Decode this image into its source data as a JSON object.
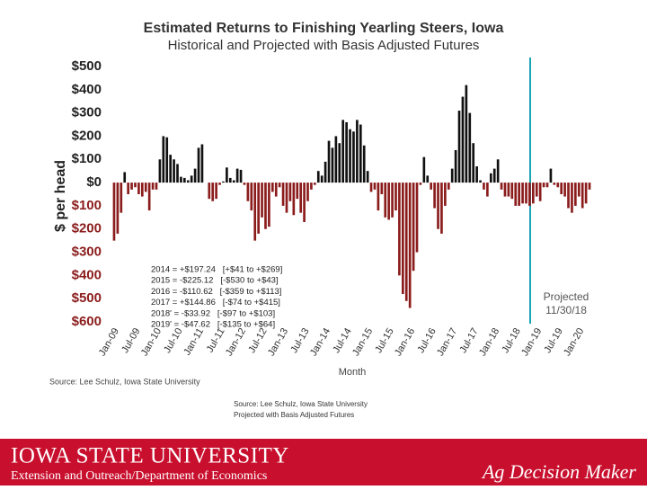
{
  "chart_data": {
    "type": "bar",
    "title": "Estimated Returns to Finishing Yearling Steers, Iowa",
    "subtitle": "Historical and Projected with Basis Adjusted Futures",
    "y_label": "$ per head",
    "x_label": "Month",
    "categories": [
      "Jan-09",
      null,
      null,
      null,
      null,
      null,
      "Jul-09",
      null,
      null,
      null,
      null,
      null,
      "Jan-10",
      null,
      null,
      null,
      null,
      null,
      "Jul-10",
      null,
      null,
      null,
      null,
      null,
      "Jan-11",
      null,
      null,
      null,
      null,
      null,
      "Jul-11",
      null,
      null,
      null,
      null,
      null,
      "Jan-12",
      null,
      null,
      null,
      null,
      null,
      "Jul-12",
      null,
      null,
      null,
      null,
      null,
      "Jan-13",
      null,
      null,
      null,
      null,
      null,
      "Jul-13",
      null,
      null,
      null,
      null,
      null,
      "Jan-14",
      null,
      null,
      null,
      null,
      null,
      "Jul-14",
      null,
      null,
      null,
      null,
      null,
      "Jan-15",
      null,
      null,
      null,
      null,
      null,
      "Jul-15",
      null,
      null,
      null,
      null,
      null,
      "Jan-16",
      null,
      null,
      null,
      null,
      null,
      "Jul-16",
      null,
      null,
      null,
      null,
      null,
      "Jan-17",
      null,
      null,
      null,
      null,
      null,
      "Jul-17",
      null,
      null,
      null,
      null,
      null,
      "Jan-18",
      null,
      null,
      null,
      null,
      null,
      "Jul-18",
      null,
      null,
      null,
      null,
      null,
      "Jan-19",
      null,
      null,
      null,
      null,
      null,
      "Jul-19",
      null,
      null,
      null,
      null,
      null,
      "Jan-20",
      null,
      null,
      null
    ],
    "values": [
      -250,
      -220,
      -130,
      45,
      -50,
      -30,
      -20,
      -50,
      -60,
      -40,
      -120,
      -30,
      -30,
      100,
      200,
      195,
      120,
      100,
      80,
      25,
      20,
      10,
      30,
      60,
      150,
      165,
      0,
      -70,
      -80,
      -70,
      -10,
      5,
      65,
      20,
      10,
      60,
      55,
      -10,
      -80,
      -120,
      -250,
      -220,
      -150,
      -200,
      -190,
      -40,
      -60,
      -20,
      -100,
      -130,
      -80,
      -140,
      -70,
      -130,
      -170,
      -80,
      -30,
      -10,
      50,
      30,
      90,
      180,
      150,
      200,
      170,
      270,
      260,
      230,
      220,
      270,
      250,
      160,
      50,
      -40,
      -30,
      -120,
      -50,
      -150,
      -160,
      -150,
      -120,
      -400,
      -480,
      -510,
      -540,
      -380,
      -300,
      -10,
      110,
      30,
      -30,
      -110,
      -200,
      -220,
      -100,
      -30,
      60,
      140,
      310,
      370,
      420,
      300,
      170,
      70,
      10,
      -30,
      -60,
      40,
      60,
      100,
      -30,
      -60,
      -60,
      -70,
      -100,
      -100,
      -90,
      -90,
      -100,
      -90,
      -60,
      -80,
      -20,
      -20,
      60,
      -10,
      -20,
      -50,
      -60,
      -110,
      -130,
      -100,
      -60,
      -110,
      -90,
      -30
    ],
    "positive_color": "#111111",
    "negative_color": "#8b1c1c",
    "ylim": [
      -600,
      500
    ],
    "yticks": [
      {
        "value": -600,
        "label": "$600"
      },
      {
        "value": -500,
        "label": "$500"
      },
      {
        "value": -400,
        "label": "$400"
      },
      {
        "value": -300,
        "label": "$300"
      },
      {
        "value": -200,
        "label": "$200"
      },
      {
        "value": -100,
        "label": "$100"
      },
      {
        "value": 0,
        "label": "$0"
      },
      {
        "value": 100,
        "label": "$100"
      },
      {
        "value": 200,
        "label": "$200"
      },
      {
        "value": 300,
        "label": "$300"
      },
      {
        "value": 400,
        "label": "$400"
      },
      {
        "value": 500,
        "label": "$500"
      }
    ],
    "annotations": [
      "2014 = +$197.24   [+$41 to +$269]",
      "2015 = -$225.12   [-$530 to +$43]",
      "2016 = -$110.62   [-$359 to +$113]",
      "2017 = +$144.86   [-$74 to +$415]",
      "2018' = -$33.92   [-$97 to +$103]",
      "2019' = -$47.62   [-$135 to +$64]"
    ],
    "projection_note": [
      "Projected",
      "11/30/18"
    ],
    "source": "Source: Lee Schulz, Iowa State University"
  },
  "caption": [
    "Source: Lee Schulz, Iowa State University",
    "Projected with Basis Adjusted Futures"
  ],
  "footer": {
    "university": "Iowa State University",
    "unit": "Extension and Outreach/Department of Economics",
    "brand": "Ag Decision Maker"
  }
}
